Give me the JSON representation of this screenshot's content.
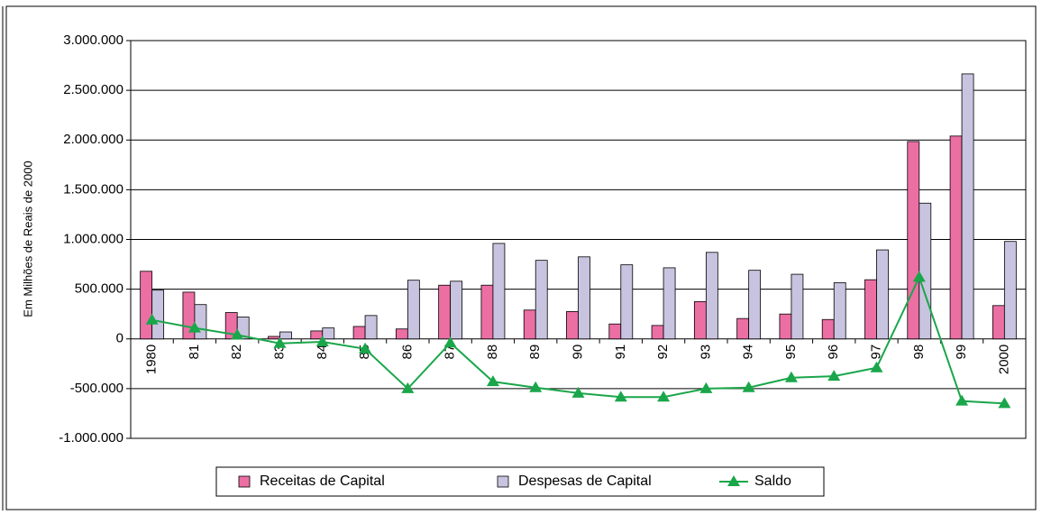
{
  "chart_data": {
    "type": "bar",
    "y_label": "Em Milhões de Reais de 2000",
    "categories": [
      "1980",
      "81",
      "82",
      "83",
      "84",
      "85",
      "86",
      "87",
      "88",
      "89",
      "90",
      "91",
      "92",
      "93",
      "94",
      "95",
      "96",
      "97",
      "98",
      "99",
      "2000"
    ],
    "series": [
      {
        "name": "Receitas de Capital",
        "type": "bar",
        "color": "#ec6fa4",
        "values": [
          680000,
          470000,
          265000,
          25000,
          80000,
          125000,
          100000,
          540000,
          540000,
          290000,
          275000,
          150000,
          135000,
          375000,
          205000,
          250000,
          195000,
          595000,
          1985000,
          2040000,
          335000
        ]
      },
      {
        "name": "Despesas de Capital",
        "type": "bar",
        "color": "#c8c4e0",
        "values": [
          490000,
          345000,
          220000,
          70000,
          110000,
          235000,
          590000,
          580000,
          960000,
          790000,
          825000,
          745000,
          715000,
          870000,
          690000,
          650000,
          565000,
          895000,
          1365000,
          2665000,
          980000
        ]
      },
      {
        "name": "Saldo",
        "type": "line",
        "color": "#1aa64a",
        "values": [
          190000,
          110000,
          40000,
          -45000,
          -30000,
          -100000,
          -500000,
          -40000,
          -430000,
          -490000,
          -545000,
          -585000,
          -585000,
          -500000,
          -490000,
          -390000,
          -375000,
          -290000,
          620000,
          -625000,
          -650000
        ]
      }
    ],
    "ylim": [
      -1000000,
      3000000
    ],
    "yticks": [
      {
        "value": -1000000,
        "label": "-1.000.000"
      },
      {
        "value": -500000,
        "label": "-500.000"
      },
      0,
      {
        "value": 500000,
        "label": "500.000"
      },
      {
        "value": 1000000,
        "label": "1.000.000"
      },
      {
        "value": 1500000,
        "label": "1.500.000"
      },
      {
        "value": 2000000,
        "label": "2.000.000"
      },
      {
        "value": 2500000,
        "label": "2.500.000"
      },
      {
        "value": 3000000,
        "label": "3.000.000"
      }
    ],
    "grid": true,
    "legend": "bottom"
  }
}
